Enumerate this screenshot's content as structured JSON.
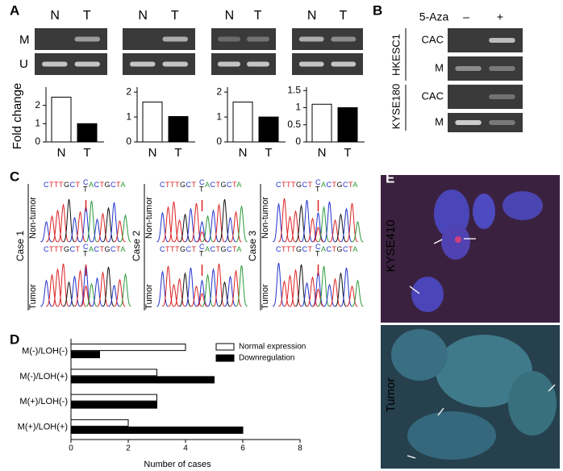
{
  "panel_a": {
    "label": "A",
    "lanes": [
      "N",
      "T"
    ],
    "row_labels": [
      "M",
      "U"
    ]
  },
  "panel_b": {
    "label": "B",
    "treatment": "5-Aza",
    "lanes": [
      "–",
      "+"
    ],
    "cell_lines": [
      "HKESC1",
      "KYSE180"
    ],
    "row_labels": [
      "CAC",
      "M"
    ]
  },
  "panel_c": {
    "label": "C",
    "sequence_prefix": "CTTTGCT",
    "variant": [
      "C",
      "T"
    ],
    "sequence_suffix": "ACTGCTA",
    "cases": [
      "Case 1",
      "Case 2",
      "Case 3"
    ],
    "rows": [
      "Non-tumor",
      "Tumor"
    ]
  },
  "panel_d": {
    "label": "D"
  },
  "panel_e": {
    "label": "E",
    "rows": [
      "KYSE410",
      "Tumor"
    ]
  },
  "chart_data": [
    {
      "type": "bar",
      "ylabel": "Fold change",
      "categories": [
        "N",
        "T"
      ],
      "values": [
        2.45,
        1.0
      ],
      "colors": [
        "#ffffff",
        "#000000"
      ],
      "ylim": [
        0,
        3
      ],
      "yticks": [
        0,
        1,
        2
      ]
    },
    {
      "type": "bar",
      "categories": [
        "N",
        "T"
      ],
      "values": [
        1.6,
        1.02
      ],
      "colors": [
        "#ffffff",
        "#000000"
      ],
      "ylim": [
        0,
        2.2
      ],
      "yticks": [
        0,
        1,
        2
      ]
    },
    {
      "type": "bar",
      "categories": [
        "N",
        "T"
      ],
      "values": [
        1.6,
        1.0
      ],
      "colors": [
        "#ffffff",
        "#000000"
      ],
      "ylim": [
        0,
        2.2
      ],
      "yticks": [
        0,
        1,
        2
      ]
    },
    {
      "type": "bar",
      "categories": [
        "N",
        "T"
      ],
      "values": [
        1.1,
        1.0
      ],
      "colors": [
        "#ffffff",
        "#000000"
      ],
      "ylim": [
        0,
        1.6
      ],
      "yticks": [
        0,
        0.5,
        1,
        1.5
      ]
    },
    {
      "type": "barh",
      "categories": [
        "M(-)/LOH(-)",
        "M(-)/LOH(+)",
        "M(+)/LOH(-)",
        "M(+)/LOH(+)"
      ],
      "series": [
        {
          "name": "Normal expression",
          "color": "#ffffff",
          "values": [
            4,
            3,
            3,
            2
          ]
        },
        {
          "name": "Downregulation",
          "color": "#000000",
          "values": [
            1,
            5,
            3,
            6
          ]
        }
      ],
      "xlim": [
        0,
        8
      ],
      "xticks": [
        0,
        2,
        4,
        6,
        8
      ],
      "xlabel": "Number of cases",
      "legend": "upper right"
    }
  ]
}
